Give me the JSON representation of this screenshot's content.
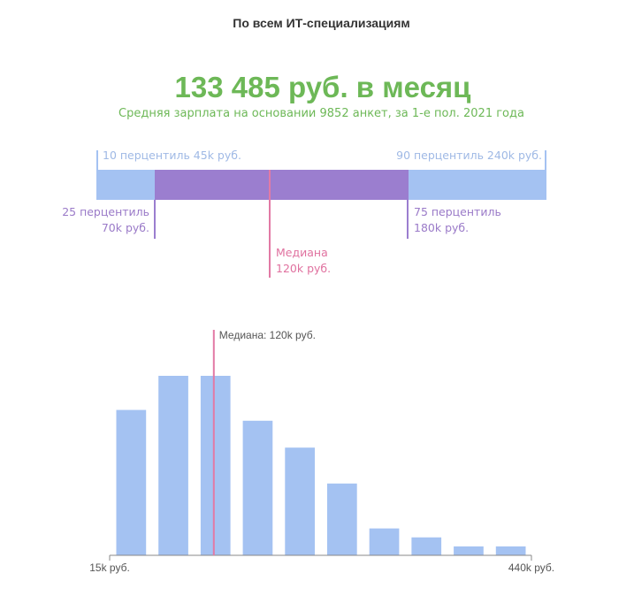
{
  "page": {
    "title": "По всем ИТ-специализациям",
    "headline": "133 485 руб. в месяц",
    "subtitle": "Средняя зарплата на основании 9852 анкет, за 1-е пол. 2021 года"
  },
  "percentiles": {
    "p10": {
      "label": "10 перцентиль 45k руб.",
      "value": 45
    },
    "p25": {
      "line1": "25 перцентиль",
      "line2": "70k руб.",
      "value": 70
    },
    "median": {
      "line1": "Медиана",
      "line2": "120k руб.",
      "value": 120
    },
    "p75": {
      "line1": "75 перцентиль",
      "line2": "180k руб.",
      "value": 180
    },
    "p90": {
      "label": "90 перцентиль 240k руб.",
      "value": 240
    },
    "colors": {
      "outer": "#a4c2f2",
      "inner": "#9b7ecf",
      "median": "#e27aa5"
    }
  },
  "chart_data": {
    "type": "bar",
    "title": "",
    "xlabel": "",
    "ylabel": "",
    "xlim": [
      15,
      440
    ],
    "values": [
      81,
      100,
      100,
      75,
      60,
      40,
      15,
      10,
      5,
      5
    ],
    "ylim": [
      0,
      100
    ],
    "tick_labels": [
      "15k руб.",
      "440k руб."
    ],
    "median_value": 120,
    "median_label": "Медиана: 120k руб.",
    "bar_color": "#a4c2f2",
    "median_color": "#e27aa5",
    "grid": false
  }
}
